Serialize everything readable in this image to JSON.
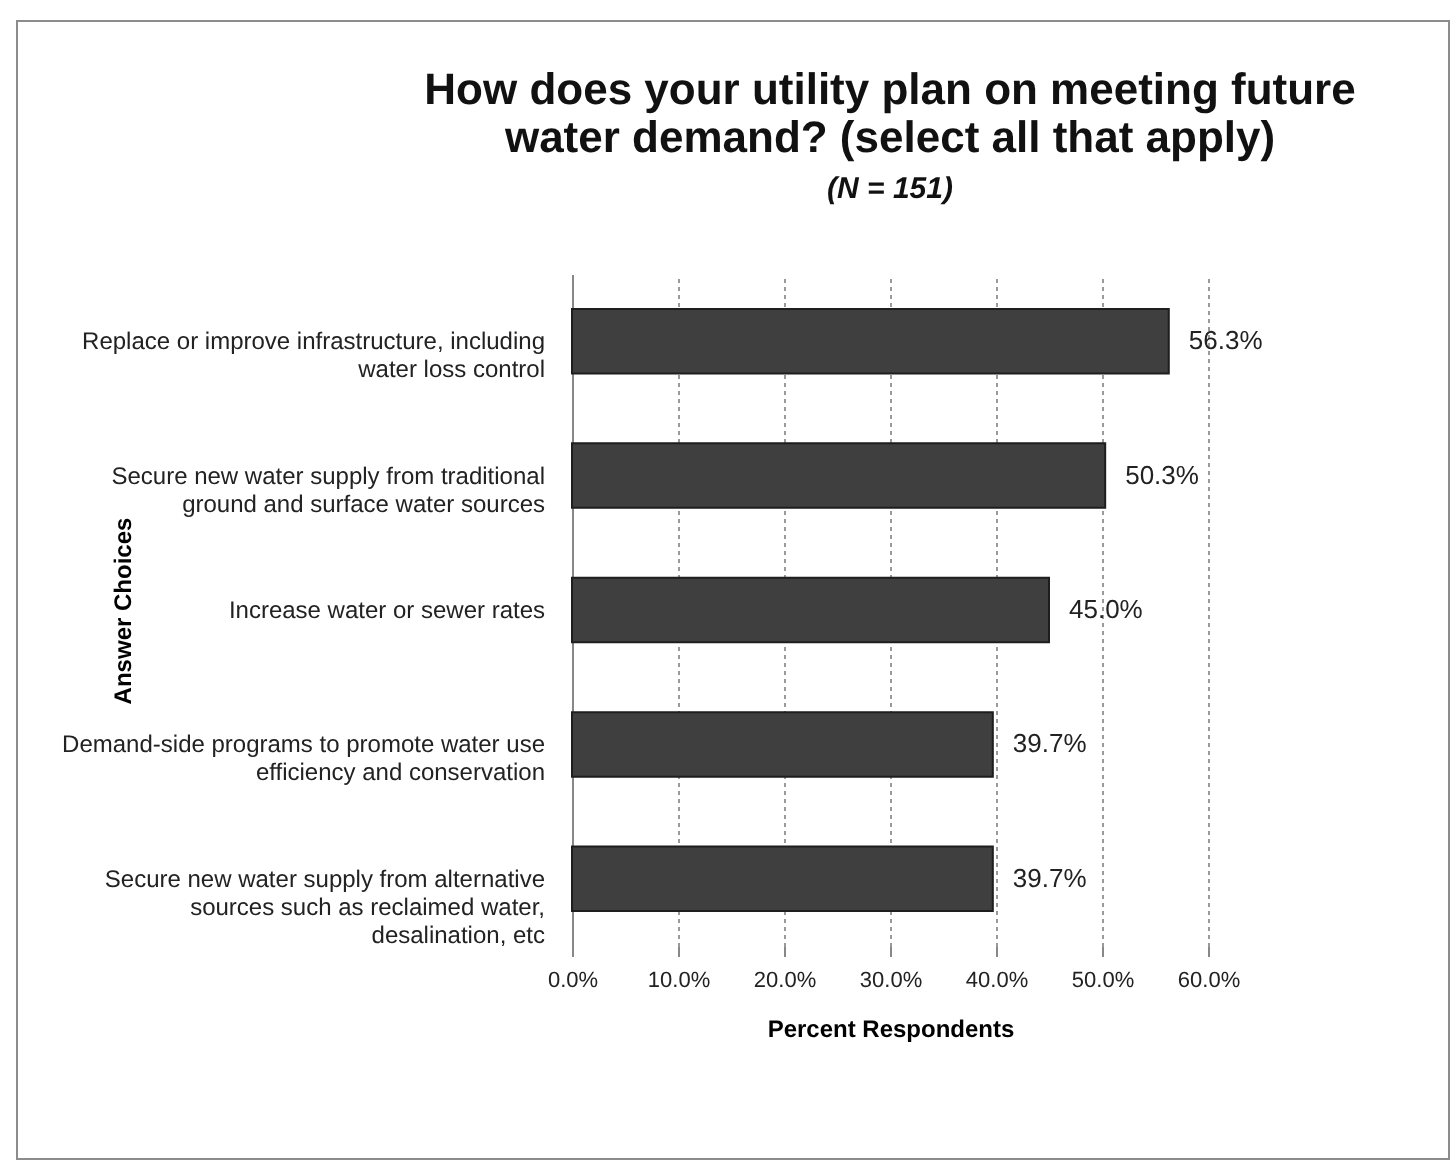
{
  "chart_data": {
    "type": "bar",
    "orientation": "horizontal",
    "title": "How does your utility plan on meeting future water demand? (select all that apply)",
    "subtitle": "(N = 151)",
    "xlabel": "Percent Respondents",
    "ylabel": "Answer Choices",
    "categories": [
      "Replace or improve infrastructure, including water loss control",
      "Secure new water supply from traditional ground and surface water sources",
      "Increase water or sewer rates",
      "Demand-side programs to promote water use efficiency and conservation",
      "Secure new water supply from alternative sources such as reclaimed water, desalination, etc"
    ],
    "values": [
      56.3,
      50.3,
      45.0,
      39.7,
      39.7
    ],
    "value_labels": [
      "56.3%",
      "50.3%",
      "45.0%",
      "39.7%",
      "39.7%"
    ],
    "color": "#3f3f3f",
    "xlim": [
      0,
      60
    ],
    "xticks": [
      {
        "value": 0,
        "label": "0.0%"
      },
      {
        "value": 10,
        "label": "10.0%"
      },
      {
        "value": 20,
        "label": "20.0%"
      },
      {
        "value": 30,
        "label": "30.0%"
      },
      {
        "value": 40,
        "label": "40.0%"
      },
      {
        "value": 50,
        "label": "50.0%"
      },
      {
        "value": 60,
        "label": "60.0%"
      }
    ],
    "grid": "x"
  }
}
